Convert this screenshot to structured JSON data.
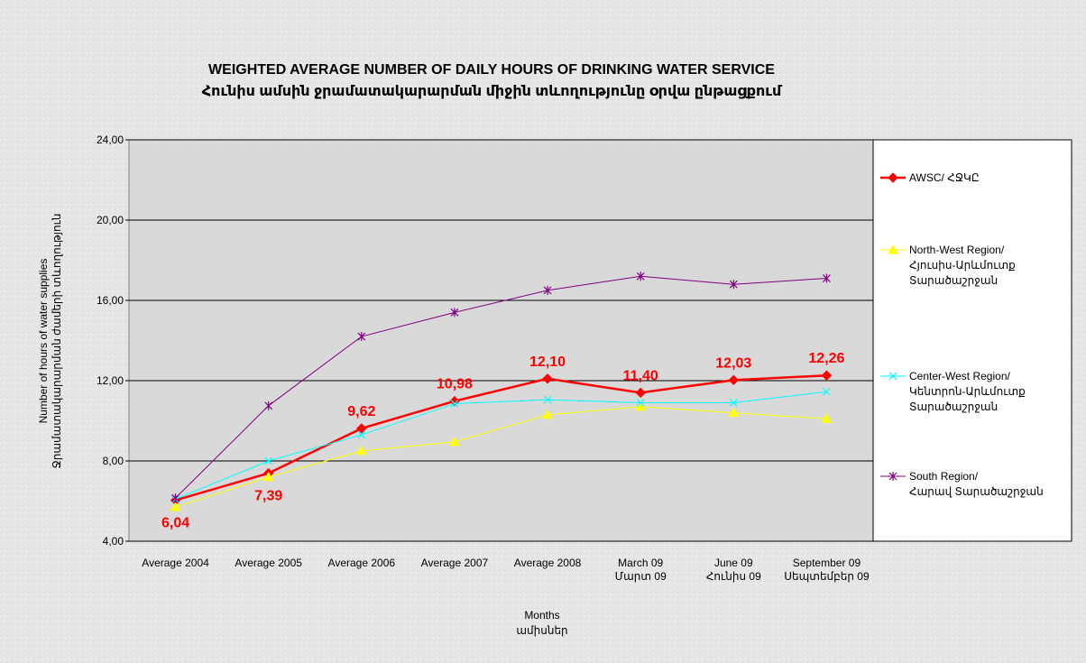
{
  "chart_data": {
    "type": "line",
    "title": "WEIGHTED AVERAGE NUMBER OF DAILY HOURS OF DRINKING WATER SERVICE",
    "subtitle": "Հունիս ամսին ջրամատակարարման միջին տևողությունը օրվա ընթացքում",
    "y_label": [
      "Number of hours of water supplies",
      "Ջրամատակարարման ժամերի տևողություն"
    ],
    "x_label": [
      "Months",
      "ամիսներ"
    ],
    "categories": [
      "Average 2004",
      "Average 2005",
      "Average 2006",
      "Average 2007",
      "Average 2008",
      "March 09\nՄարտ 09",
      "June 09\nՀունիս 09",
      "September 09\nՍեպտեմբեր 09"
    ],
    "series": [
      {
        "name": "AWSC/ ՀՋԿԸ",
        "color": "#ff0000",
        "marker": "diamond",
        "values": [
          6.04,
          7.39,
          9.62,
          10.98,
          12.1,
          11.4,
          12.03,
          12.26
        ],
        "value_labels": [
          "6,04",
          "7,39",
          "9,62",
          "10,98",
          "12,10",
          "11,40",
          "12,03",
          "12,26"
        ]
      },
      {
        "name": "North-West Region/\nՀյուսիս-Արևմուտք\nՏարածաշրջան",
        "color": "#ffff00",
        "marker": "triangle",
        "values": [
          5.7,
          7.2,
          8.5,
          8.95,
          10.3,
          10.7,
          10.4,
          10.1
        ]
      },
      {
        "name": "Center-West Region/\nԿենտրոն-Արևմուտք\nՏարածաշրջան",
        "color": "#00ffff",
        "marker": "x",
        "values": [
          6.1,
          8.0,
          9.3,
          10.85,
          11.05,
          10.9,
          10.9,
          11.45
        ]
      },
      {
        "name": "South Region/\nՀարավ Տարածաշրջան",
        "color": "#800080",
        "marker": "star",
        "values": [
          6.15,
          10.75,
          14.2,
          15.4,
          16.5,
          17.2,
          16.8,
          17.1
        ]
      }
    ],
    "ylim": [
      4,
      24
    ],
    "yticks": [
      {
        "value": 4,
        "label": "4,00"
      },
      {
        "value": 8,
        "label": "8,00"
      },
      {
        "value": 12,
        "label": "12,00"
      },
      {
        "value": 16,
        "label": "16,00"
      },
      {
        "value": 20,
        "label": "20,00"
      },
      {
        "value": 24,
        "label": "24,00"
      }
    ],
    "grid": true,
    "legend": "right"
  }
}
